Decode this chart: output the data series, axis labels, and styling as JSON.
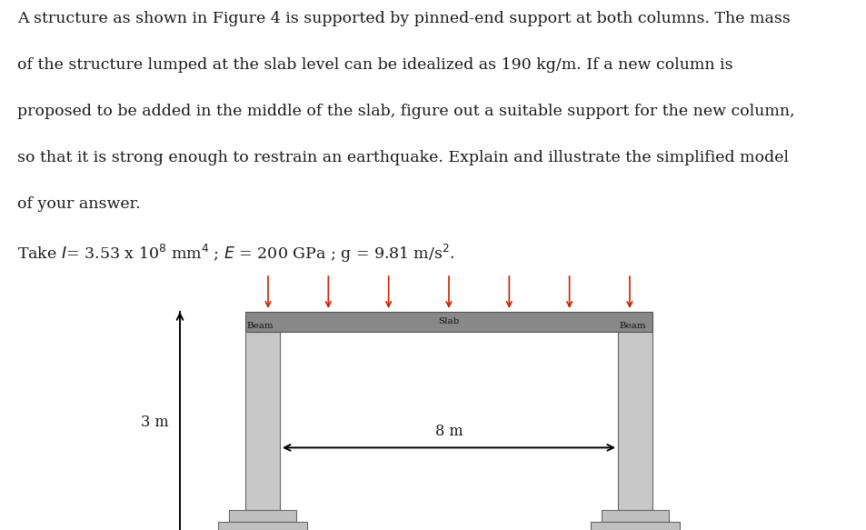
{
  "text_paragraphs": [
    "A structure as shown in Figure 4 is supported by pinned-end support at both columns. The mass",
    "of the structure lumped at the slab level can be idealized as 190 kg/m. If a new column is",
    "proposed to be added in the middle of the slab, figure out a suitable support for the new column,",
    "so that it is strong enough to restrain an earthquake. Explain and illustrate the simplified model",
    "of your answer."
  ],
  "formula_line": "Take $I$= 3.53 x 10$^{8}$ mm$^{4}$ ; $E$ = 200 GPa ; g = 9.81 m/s$^{2}$.",
  "bg_color": "#ffffff",
  "text_color": "#1a1a1a",
  "column_color_light": "#c8c8c8",
  "column_color_dark": "#a0a0a0",
  "slab_color": "#888888",
  "base_color_light": "#c0c0c0",
  "base_color_dark": "#989898",
  "arrow_color": "#cc2000",
  "dim_arrow_color": "#000000",
  "beam_label": "Beam",
  "slab_label": "Slab",
  "height_label": "3 m",
  "width_label": "8 m",
  "font_size_text": 12.5,
  "font_size_label": 7.5,
  "font_size_dim": 11.5,
  "n_load_arrows": 7
}
